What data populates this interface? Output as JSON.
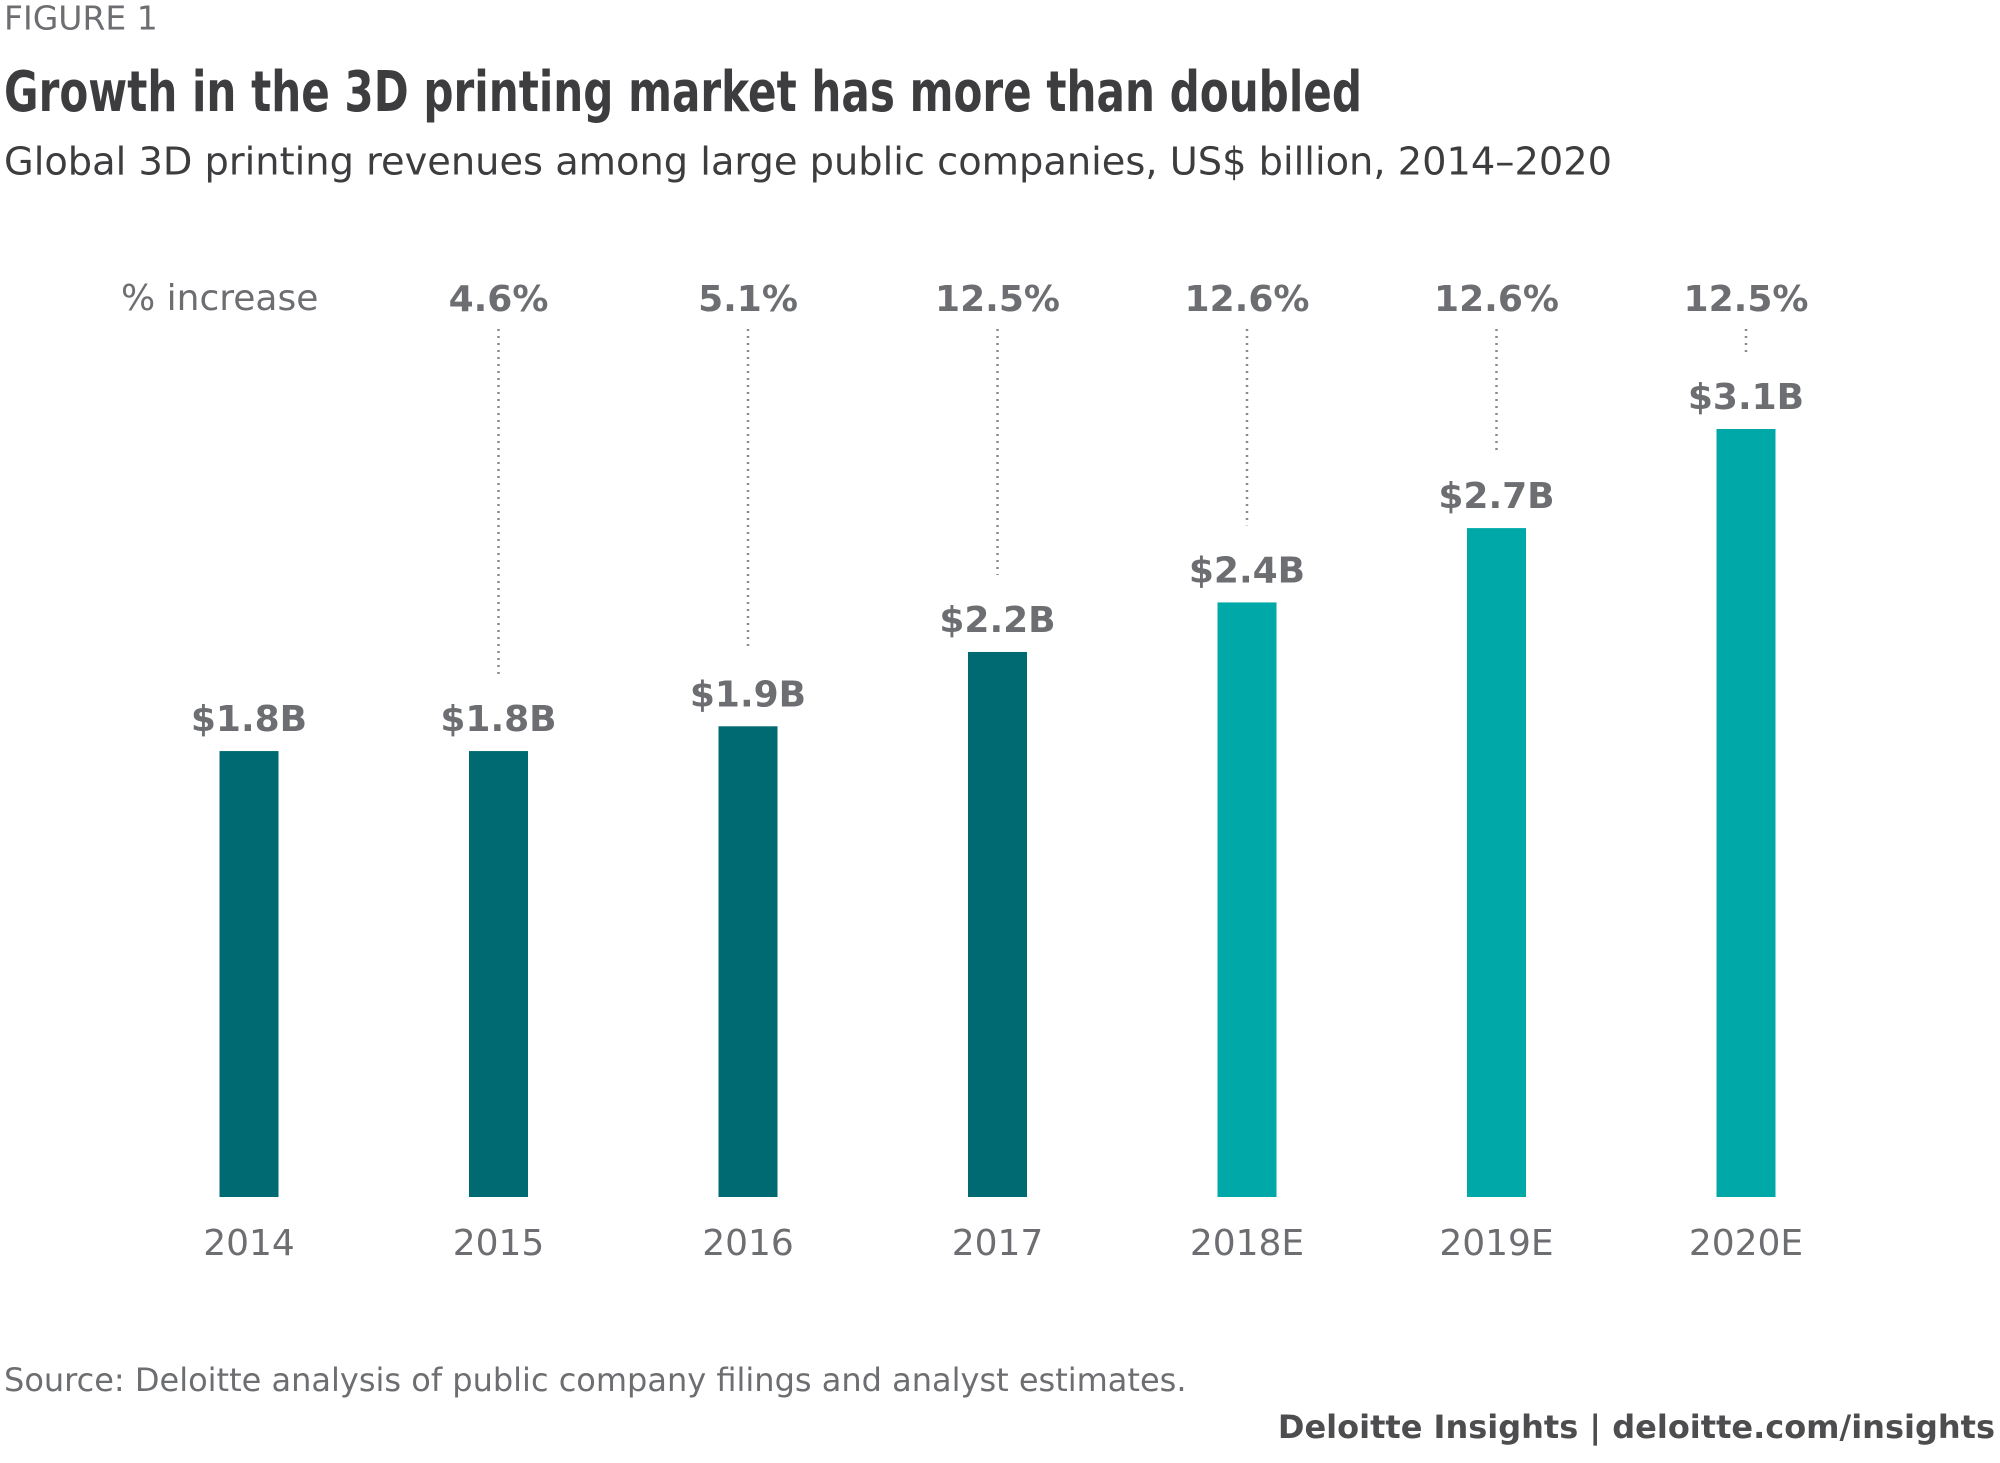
{
  "chart_data": {
    "type": "bar",
    "figure_label": "FIGURE 1",
    "title": "Growth in the 3D printing market has more than doubled",
    "subtitle": "Global 3D printing revenues among large public companies, US$ billion, 2014–2020",
    "categories": [
      "2014",
      "2015",
      "2016",
      "2017",
      "2018E",
      "2019E",
      "2020E"
    ],
    "values": [
      1.8,
      1.8,
      1.9,
      2.2,
      2.4,
      2.7,
      3.1
    ],
    "value_labels": [
      "$1.8B",
      "$1.8B",
      "$1.9B",
      "$2.2B",
      "$2.4B",
      "$2.7B",
      "$3.1B"
    ],
    "colors": [
      "#006a72",
      "#006a72",
      "#006a72",
      "#006a72",
      "#00a9a8",
      "#00a9a8",
      "#00a9a8"
    ],
    "growth": {
      "label": "% increase",
      "values": [
        null,
        4.6,
        5.1,
        12.5,
        12.6,
        12.6,
        12.5
      ],
      "value_labels": [
        null,
        "4.6%",
        "5.1%",
        "12.5%",
        "12.6%",
        "12.6%",
        "12.5%"
      ]
    },
    "source": "Source: Deloitte analysis of public company filings and analyst estimates.",
    "footer": "Deloitte Insights | deloitte.com/insights"
  }
}
